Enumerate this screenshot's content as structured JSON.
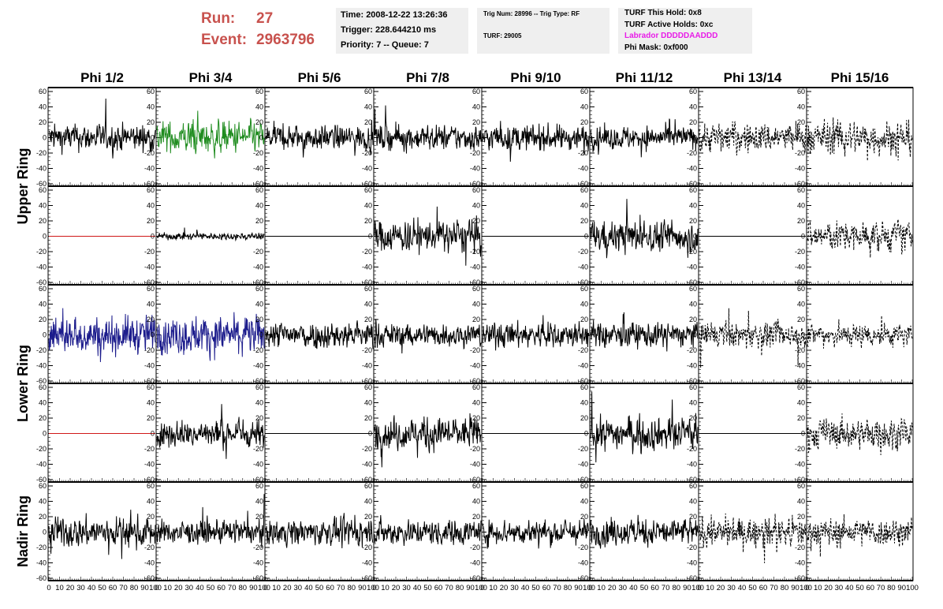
{
  "header": {
    "run_label": "Run:",
    "run_value": "27",
    "event_label": "Event:",
    "event_value": "2963796",
    "time_line": "Time: 2008-12-22 13:26:36",
    "trigger_line": "Trigger: 228.644210 ms",
    "priority_line": "Priority: 7 -- Queue: 7",
    "trig_line": "Trig Num: 28996 -- Trig Type: RF",
    "turf_line": "TURF: 29005",
    "turf_hold_line": "TURF This Hold: 0x8",
    "turf_active_line": "TURF Active Holds: 0xc",
    "labrador_line": "Labrador DDDDDAADDD",
    "phi_mask_line": "Phi Mask: 0xf000",
    "labrador_color": "#e81ce8",
    "run_color": "#c8524e"
  },
  "chart_data": {
    "type": "line",
    "column_labels": [
      "Phi 1/2",
      "Phi 3/4",
      "Phi 5/6",
      "Phi 7/8",
      "Phi 9/10",
      "Phi 11/12",
      "Phi 13/14",
      "Phi 15/16"
    ],
    "ring_labels": [
      {
        "label": "Upper Ring",
        "rows": [
          0,
          1
        ]
      },
      {
        "label": "Lower Ring",
        "rows": [
          2,
          3
        ]
      },
      {
        "label": "Nadir Ring",
        "rows": [
          4
        ]
      }
    ],
    "ylim": [
      -60,
      60
    ],
    "xlim": [
      0,
      100
    ],
    "y_ticks": [
      "60",
      "40",
      "20",
      "0",
      "-20",
      "-40",
      "-60"
    ],
    "x_ticks": [
      "0",
      "10",
      "20",
      "30",
      "40",
      "50",
      "60",
      "70",
      "80",
      "90",
      "100"
    ],
    "colors": {
      "black": "#000000",
      "green": "#1f8c1f",
      "blue": "#1c1c8c",
      "red": "#d01818"
    },
    "panels": [
      [
        {
          "style": "solid",
          "color": "black",
          "amp": 12
        },
        {
          "style": "solid",
          "color": "green",
          "amp": 14
        },
        {
          "style": "solid",
          "color": "black",
          "amp": 11
        },
        {
          "style": "solid",
          "color": "black",
          "amp": 11
        },
        {
          "style": "solid",
          "color": "black",
          "amp": 11
        },
        {
          "style": "solid",
          "color": "black",
          "amp": 10
        },
        {
          "style": "dashed",
          "color": "black",
          "amp": 13
        },
        {
          "style": "dashed",
          "color": "black",
          "amp": 15
        }
      ],
      [
        {
          "style": "flat",
          "color": "red",
          "amp": 0
        },
        {
          "style": "solid",
          "color": "black",
          "amp": 3
        },
        {
          "style": "flat",
          "color": "black",
          "amp": 0
        },
        {
          "style": "solid",
          "color": "black",
          "amp": 14
        },
        {
          "style": "flat",
          "color": "black",
          "amp": 0
        },
        {
          "style": "solid",
          "color": "black",
          "amp": 14
        },
        {
          "style": "flat",
          "color": "black",
          "amp": 0
        },
        {
          "style": "dashed",
          "color": "black",
          "amp": 13
        }
      ],
      [
        {
          "style": "solid",
          "color": "blue",
          "amp": 16
        },
        {
          "style": "solid",
          "color": "blue",
          "amp": 16
        },
        {
          "style": "solid",
          "color": "black",
          "amp": 12
        },
        {
          "style": "solid",
          "color": "black",
          "amp": 10
        },
        {
          "style": "solid",
          "color": "black",
          "amp": 11
        },
        {
          "style": "solid",
          "color": "black",
          "amp": 11
        },
        {
          "style": "dashed",
          "color": "black",
          "amp": 11
        },
        {
          "style": "dashed",
          "color": "black",
          "amp": 10
        }
      ],
      [
        {
          "style": "flat",
          "color": "red",
          "amp": 0
        },
        {
          "style": "solid",
          "color": "black",
          "amp": 12
        },
        {
          "style": "flat",
          "color": "black",
          "amp": 0
        },
        {
          "style": "solid",
          "color": "black",
          "amp": 14
        },
        {
          "style": "flat",
          "color": "black",
          "amp": 0
        },
        {
          "style": "solid",
          "color": "black",
          "amp": 14
        },
        {
          "style": "flat",
          "color": "black",
          "amp": 0
        },
        {
          "style": "dashed",
          "color": "black",
          "amp": 13
        }
      ],
      [
        {
          "style": "solid",
          "color": "black",
          "amp": 13
        },
        {
          "style": "solid",
          "color": "black",
          "amp": 10
        },
        {
          "style": "solid",
          "color": "black",
          "amp": 11
        },
        {
          "style": "solid",
          "color": "black",
          "amp": 11
        },
        {
          "style": "solid",
          "color": "black",
          "amp": 11
        },
        {
          "style": "solid",
          "color": "black",
          "amp": 12
        },
        {
          "style": "dashed",
          "color": "black",
          "amp": 12
        },
        {
          "style": "dashed",
          "color": "black",
          "amp": 12
        }
      ]
    ]
  }
}
